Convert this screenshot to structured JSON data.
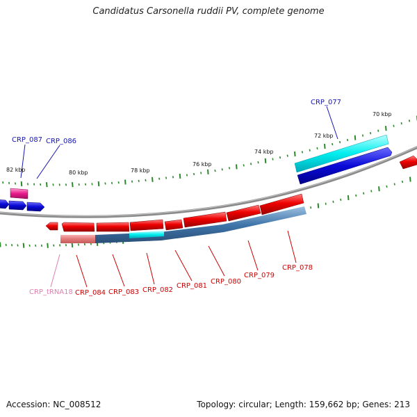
{
  "title": "Candidatus Carsonella ruddii PV, complete genome",
  "footer": {
    "accession": "Accession: NC_008512",
    "summary": "Topology: circular; Length: 159,662 bp; Genes: 213"
  },
  "colors": {
    "backbone": "#808080",
    "plus_gene": "#1010e0",
    "plus_cyan": "#00e5ee",
    "plus_pink": "#e0208a",
    "minus_gene": "#e00000",
    "minus_label": "#cc0000",
    "plus_label": "#1515b0",
    "trna_label": "#e080b0",
    "tick": "#2a8a2a",
    "blue_band": "#4a7fb0"
  },
  "kbp_labels": [
    "70 kbp",
    "72 kbp",
    "74 kbp",
    "76 kbp",
    "78 kbp",
    "80 kbp",
    "82 kbp"
  ],
  "gene_labels": {
    "plus": [
      "CRP_077",
      "CRP_086",
      "CRP_087"
    ],
    "minus": [
      "CRP_078",
      "CRP_079",
      "CRP_080",
      "CRP_081",
      "CRP_082",
      "CRP_083",
      "CRP_084"
    ],
    "trna": [
      "CRP_tRNA18"
    ]
  }
}
